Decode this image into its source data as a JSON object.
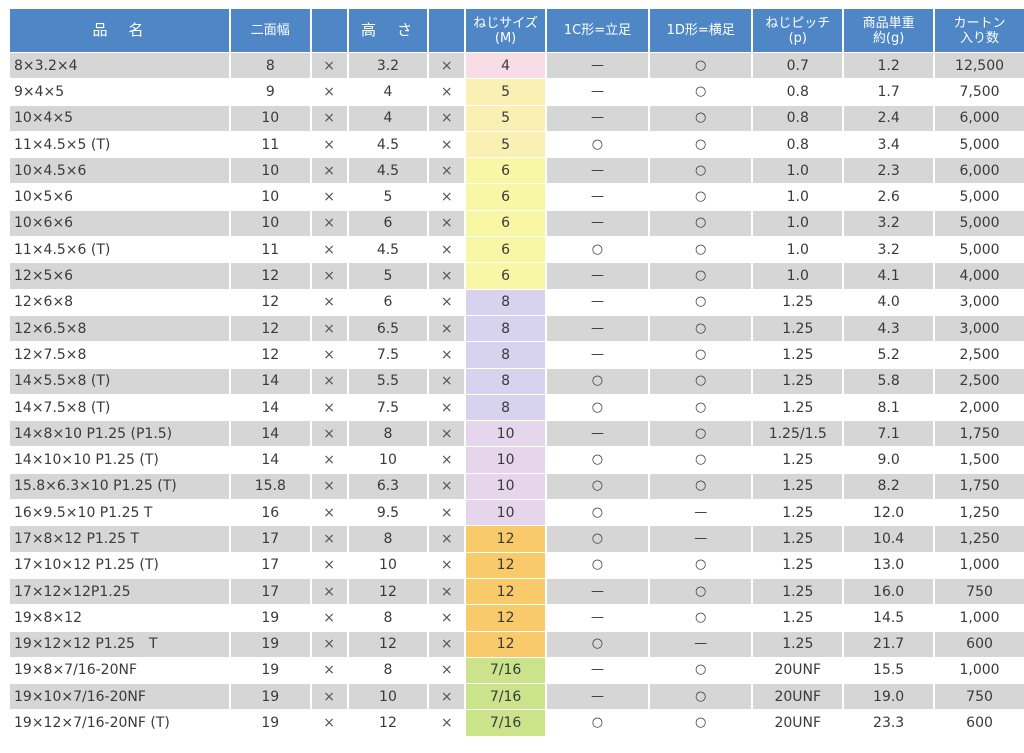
{
  "table": {
    "headers": [
      {
        "key": "name",
        "label": "品　名"
      },
      {
        "key": "width",
        "label": "二面幅"
      },
      {
        "key": "x1",
        "label": ""
      },
      {
        "key": "height",
        "label": "高　さ"
      },
      {
        "key": "x2",
        "label": ""
      },
      {
        "key": "screw",
        "label": "ねじサイズ\n(M)"
      },
      {
        "key": "c1",
        "label": "1C形=立足"
      },
      {
        "key": "d1",
        "label": "1D形=横足"
      },
      {
        "key": "pitch",
        "label": "ねじピッチ\n(p)"
      },
      {
        "key": "weight",
        "label": "商品単重\n約(g)"
      },
      {
        "key": "carton",
        "label": "カートン\n入り数"
      }
    ],
    "size_colors": {
      "4": "#f8dce6",
      "5": "#faf0b4",
      "6": "#f8f7a6",
      "8": "#d7d3ee",
      "10": "#e6d6ec",
      "12": "#f8ca6a",
      "7/16": "#cbe48c"
    },
    "times_symbol": "×",
    "rows": [
      {
        "name": "8×3.2×4",
        "width": "8",
        "height": "3.2",
        "screw": "4",
        "c1": "—",
        "d1": "○",
        "pitch": "0.7",
        "weight": "1.2",
        "carton": "12,500"
      },
      {
        "name": "9×4×5",
        "width": "9",
        "height": "4",
        "screw": "5",
        "c1": "—",
        "d1": "○",
        "pitch": "0.8",
        "weight": "1.7",
        "carton": "7,500"
      },
      {
        "name": "10×4×5",
        "width": "10",
        "height": "4",
        "screw": "5",
        "c1": "—",
        "d1": "○",
        "pitch": "0.8",
        "weight": "2.4",
        "carton": "6,000"
      },
      {
        "name": "11×4.5×5 (T)",
        "width": "11",
        "height": "4.5",
        "screw": "5",
        "c1": "○",
        "d1": "○",
        "pitch": "0.8",
        "weight": "3.4",
        "carton": "5,000"
      },
      {
        "name": "10×4.5×6",
        "width": "10",
        "height": "4.5",
        "screw": "6",
        "c1": "—",
        "d1": "○",
        "pitch": "1.0",
        "weight": "2.3",
        "carton": "6,000"
      },
      {
        "name": "10×5×6",
        "width": "10",
        "height": "5",
        "screw": "6",
        "c1": "—",
        "d1": "○",
        "pitch": "1.0",
        "weight": "2.6",
        "carton": "5,000"
      },
      {
        "name": "10×6×6",
        "width": "10",
        "height": "6",
        "screw": "6",
        "c1": "—",
        "d1": "○",
        "pitch": "1.0",
        "weight": "3.2",
        "carton": "5,000"
      },
      {
        "name": "11×4.5×6 (T)",
        "width": "11",
        "height": "4.5",
        "screw": "6",
        "c1": "○",
        "d1": "○",
        "pitch": "1.0",
        "weight": "3.2",
        "carton": "5,000"
      },
      {
        "name": "12×5×6",
        "width": "12",
        "height": "5",
        "screw": "6",
        "c1": "—",
        "d1": "○",
        "pitch": "1.0",
        "weight": "4.1",
        "carton": "4,000"
      },
      {
        "name": "12×6×8",
        "width": "12",
        "height": "6",
        "screw": "8",
        "c1": "—",
        "d1": "○",
        "pitch": "1.25",
        "weight": "4.0",
        "carton": "3,000"
      },
      {
        "name": "12×6.5×8",
        "width": "12",
        "height": "6.5",
        "screw": "8",
        "c1": "—",
        "d1": "○",
        "pitch": "1.25",
        "weight": "4.3",
        "carton": "3,000"
      },
      {
        "name": "12×7.5×8",
        "width": "12",
        "height": "7.5",
        "screw": "8",
        "c1": "—",
        "d1": "○",
        "pitch": "1.25",
        "weight": "5.2",
        "carton": "2,500"
      },
      {
        "name": "14×5.5×8 (T)",
        "width": "14",
        "height": "5.5",
        "screw": "8",
        "c1": "○",
        "d1": "○",
        "pitch": "1.25",
        "weight": "5.8",
        "carton": "2,500"
      },
      {
        "name": "14×7.5×8 (T)",
        "width": "14",
        "height": "7.5",
        "screw": "8",
        "c1": "○",
        "d1": "○",
        "pitch": "1.25",
        "weight": "8.1",
        "carton": "2,000"
      },
      {
        "name": "14×8×10 P1.25 (P1.5)",
        "width": "14",
        "height": "8",
        "screw": "10",
        "c1": "—",
        "d1": "○",
        "pitch": "1.25/1.5",
        "weight": "7.1",
        "carton": "1,750"
      },
      {
        "name": "14×10×10 P1.25 (T)",
        "width": "14",
        "height": "10",
        "screw": "10",
        "c1": "○",
        "d1": "○",
        "pitch": "1.25",
        "weight": "9.0",
        "carton": "1,500"
      },
      {
        "name": "15.8×6.3×10 P1.25 (T)",
        "width": "15.8",
        "height": "6.3",
        "screw": "10",
        "c1": "○",
        "d1": "○",
        "pitch": "1.25",
        "weight": "8.2",
        "carton": "1,750"
      },
      {
        "name": "16×9.5×10 P1.25 T",
        "width": "16",
        "height": "9.5",
        "screw": "10",
        "c1": "○",
        "d1": "—",
        "pitch": "1.25",
        "weight": "12.0",
        "carton": "1,250"
      },
      {
        "name": "17×8×12 P1.25 T",
        "width": "17",
        "height": "8",
        "screw": "12",
        "c1": "○",
        "d1": "—",
        "pitch": "1.25",
        "weight": "10.4",
        "carton": "1,250"
      },
      {
        "name": "17×10×12 P1.25 (T)",
        "width": "17",
        "height": "10",
        "screw": "12",
        "c1": "○",
        "d1": "○",
        "pitch": "1.25",
        "weight": "13.0",
        "carton": "1,000"
      },
      {
        "name": "17×12×12P1.25",
        "width": "17",
        "height": "12",
        "screw": "12",
        "c1": "—",
        "d1": "○",
        "pitch": "1.25",
        "weight": "16.0",
        "carton": "750"
      },
      {
        "name": "19×8×12",
        "width": "19",
        "height": "8",
        "screw": "12",
        "c1": "—",
        "d1": "○",
        "pitch": "1.25",
        "weight": "14.5",
        "carton": "1,000"
      },
      {
        "name": "19×12×12 P1.25　T",
        "width": "19",
        "height": "12",
        "screw": "12",
        "c1": "○",
        "d1": "—",
        "pitch": "1.25",
        "weight": "21.7",
        "carton": "600"
      },
      {
        "name": "19×8×7/16-20NF",
        "width": "19",
        "height": "8",
        "screw": "7/16",
        "c1": "—",
        "d1": "○",
        "pitch": "20UNF",
        "weight": "15.5",
        "carton": "1,000"
      },
      {
        "name": "19×10×7/16-20NF",
        "width": "19",
        "height": "10",
        "screw": "7/16",
        "c1": "—",
        "d1": "○",
        "pitch": "20UNF",
        "weight": "19.0",
        "carton": "750"
      },
      {
        "name": "19×12×7/16-20NF (T)",
        "width": "19",
        "height": "12",
        "screw": "7/16",
        "c1": "○",
        "d1": "○",
        "pitch": "20UNF",
        "weight": "23.3",
        "carton": "600"
      }
    ]
  }
}
